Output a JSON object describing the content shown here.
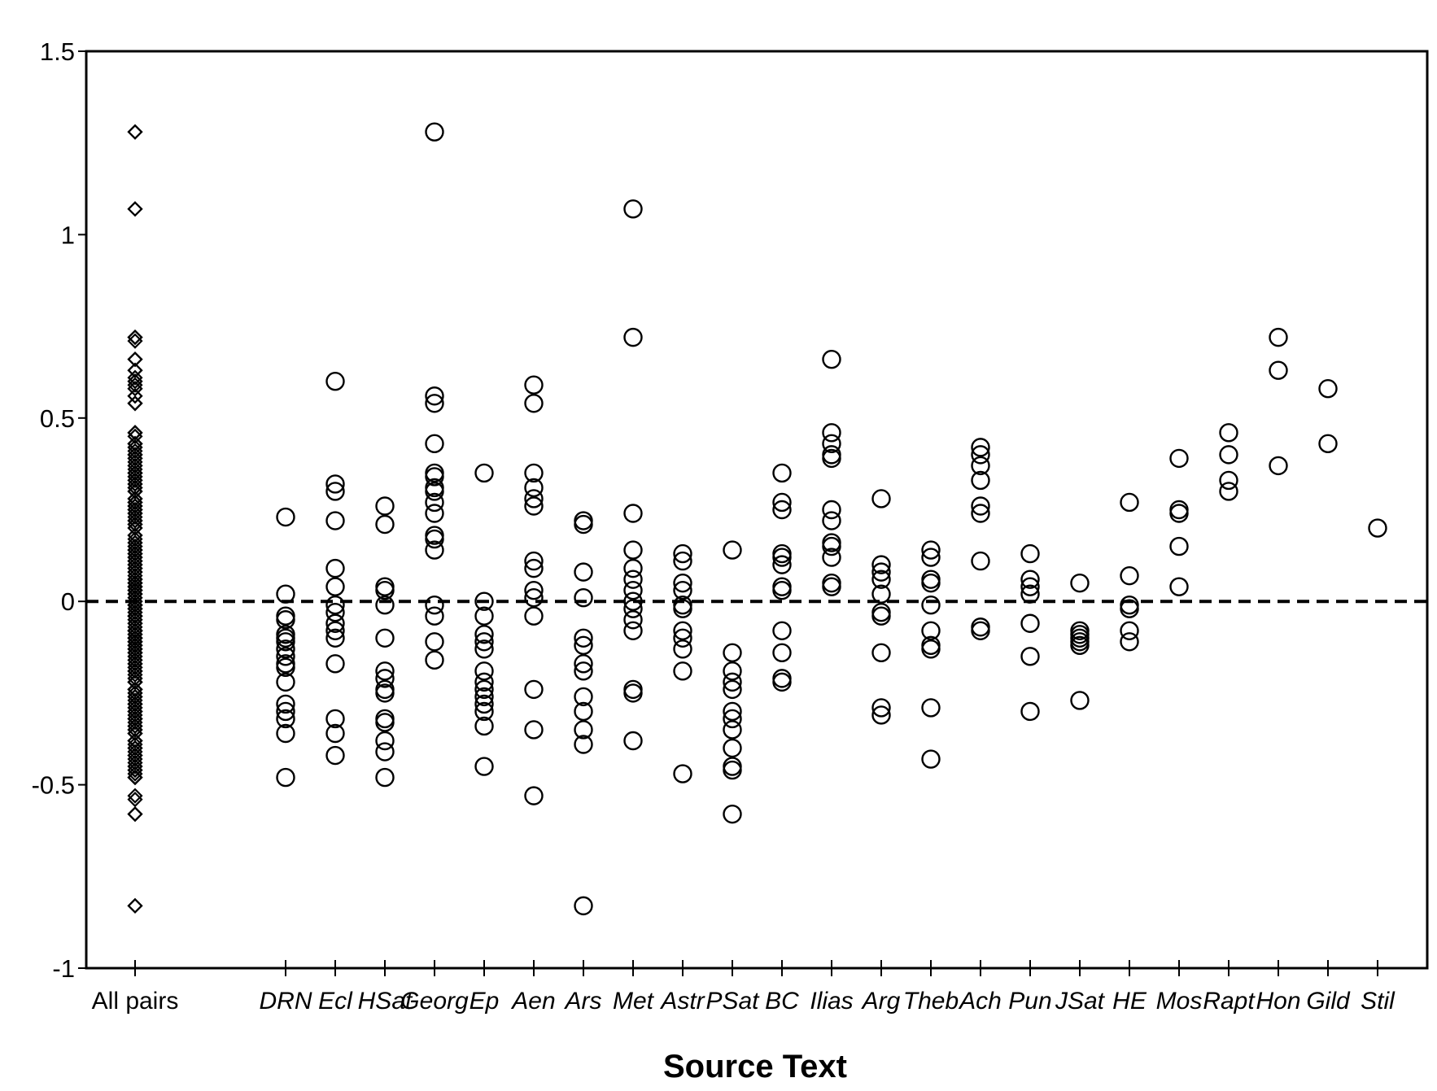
{
  "chart_data": {
    "type": "scatter",
    "title": "",
    "xlabel": "Source Text",
    "ylabel": "",
    "ylim": [
      -1,
      1.5
    ],
    "yticks": [
      "1.5",
      "1",
      "0.5",
      "0",
      "-0.5",
      "-1"
    ],
    "reference_line": {
      "y": 0,
      "style": "dashed"
    },
    "grid": false,
    "legend": "none",
    "categories": [
      "All pairs",
      "DRN",
      "Ecl",
      "HSat",
      "Georg",
      "Ep",
      "Aen",
      "Ars",
      "Met",
      "Astr",
      "PSat",
      "BC",
      "Ilias",
      "Arg",
      "Theb",
      "Ach",
      "Pun",
      "JSat",
      "HE",
      "Mos",
      "Rapt",
      "Hon",
      "Gild",
      "Stil"
    ],
    "italic_categories": [
      "DRN",
      "Ecl",
      "HSat",
      "Georg",
      "Ep",
      "Aen",
      "Ars",
      "Met",
      "Astr",
      "PSat",
      "BC",
      "Ilias",
      "Arg",
      "Theb",
      "Ach",
      "Pun",
      "JSat",
      "HE",
      "Mos",
      "Rapt",
      "Hon",
      "Gild",
      "Stil"
    ],
    "all_pairs_marker": "diamond",
    "group_marker": "circle",
    "groups": {
      "DRN": [
        0.23,
        0.02,
        -0.04,
        -0.05,
        -0.09,
        -0.1,
        -0.11,
        -0.13,
        -0.15,
        -0.17,
        -0.18,
        -0.22,
        -0.28,
        -0.3,
        -0.32,
        -0.36,
        -0.48
      ],
      "Ecl": [
        0.6,
        0.32,
        0.3,
        0.22,
        0.09,
        0.04,
        -0.01,
        -0.03,
        -0.06,
        -0.08,
        -0.1,
        -0.17,
        -0.32,
        -0.36,
        -0.42
      ],
      "HSat": [
        0.26,
        0.21,
        0.04,
        0.03,
        -0.01,
        -0.1,
        -0.19,
        -0.21,
        -0.24,
        -0.25,
        -0.32,
        -0.33,
        -0.38,
        -0.41,
        -0.48
      ],
      "Georg": [
        1.28,
        0.56,
        0.54,
        0.43,
        0.35,
        0.34,
        0.31,
        0.3,
        0.27,
        0.24,
        0.18,
        0.17,
        0.14,
        -0.01,
        -0.04,
        -0.11,
        -0.16
      ],
      "Ep": [
        0.35,
        0.0,
        -0.04,
        -0.09,
        -0.11,
        -0.13,
        -0.19,
        -0.22,
        -0.24,
        -0.26,
        -0.28,
        -0.3,
        -0.34,
        -0.45
      ],
      "Aen": [
        0.59,
        0.54,
        0.35,
        0.31,
        0.28,
        0.26,
        0.11,
        0.09,
        0.03,
        0.01,
        -0.04,
        -0.24,
        -0.35,
        -0.53
      ],
      "Ars": [
        0.22,
        0.21,
        0.08,
        0.01,
        -0.1,
        -0.12,
        -0.17,
        -0.19,
        -0.26,
        -0.3,
        -0.35,
        -0.39,
        -0.83
      ],
      "Met": [
        1.07,
        0.72,
        0.24,
        0.14,
        0.09,
        0.06,
        0.03,
        0.0,
        -0.02,
        -0.05,
        -0.08,
        -0.24,
        -0.25,
        -0.38
      ],
      "Astr": [
        0.13,
        0.11,
        0.05,
        0.03,
        -0.01,
        -0.02,
        -0.08,
        -0.1,
        -0.13,
        -0.19,
        -0.47
      ],
      "PSat": [
        0.14,
        -0.14,
        -0.19,
        -0.22,
        -0.24,
        -0.3,
        -0.32,
        -0.35,
        -0.4,
        -0.45,
        -0.46,
        -0.58
      ],
      "BC": [
        0.35,
        0.27,
        0.25,
        0.13,
        0.12,
        0.1,
        0.04,
        0.03,
        -0.08,
        -0.14,
        -0.21,
        -0.22
      ],
      "Ilias": [
        0.66,
        0.46,
        0.43,
        0.4,
        0.39,
        0.25,
        0.22,
        0.16,
        0.15,
        0.12,
        0.05,
        0.04
      ],
      "Arg": [
        0.28,
        0.1,
        0.08,
        0.06,
        0.02,
        -0.03,
        -0.04,
        -0.14,
        -0.29,
        -0.31
      ],
      "Theb": [
        0.14,
        0.12,
        0.06,
        0.05,
        -0.01,
        -0.08,
        -0.12,
        -0.13,
        -0.29,
        -0.43
      ],
      "Ach": [
        0.42,
        0.4,
        0.37,
        0.33,
        0.26,
        0.24,
        0.11,
        -0.07,
        -0.08
      ],
      "Pun": [
        0.13,
        0.06,
        0.04,
        0.02,
        -0.06,
        -0.15,
        -0.3
      ],
      "JSat": [
        0.05,
        -0.08,
        -0.09,
        -0.1,
        -0.11,
        -0.12,
        -0.27
      ],
      "HE": [
        0.27,
        0.07,
        -0.01,
        -0.02,
        -0.08,
        -0.11
      ],
      "Mos": [
        0.39,
        0.25,
        0.24,
        0.15,
        0.04
      ],
      "Rapt": [
        0.46,
        0.4,
        0.33,
        0.3
      ],
      "Hon": [
        0.72,
        0.63,
        0.37
      ],
      "Gild": [
        0.58,
        0.43
      ],
      "Stil": [
        0.2
      ]
    },
    "all_pairs_extra": [
      1.28,
      1.07,
      0.72,
      0.71,
      0.66,
      0.63,
      0.61,
      0.6,
      0.58,
      0.56,
      0.54,
      0.46,
      0.45,
      0.43,
      0.42,
      0.41,
      0.4,
      0.38,
      0.36,
      0.34,
      0.32,
      0.3,
      0.28,
      0.26,
      0.24,
      0.22,
      0.2,
      0.18,
      0.16,
      0.14,
      0.12,
      0.1,
      0.08,
      0.06,
      0.04,
      0.02,
      0.0,
      -0.02,
      -0.04,
      -0.06,
      -0.08,
      -0.1,
      -0.12,
      -0.14,
      -0.16,
      -0.18,
      -0.2,
      -0.22,
      -0.24,
      -0.26,
      -0.28,
      -0.3,
      -0.32,
      -0.34,
      -0.36,
      -0.38,
      -0.4,
      -0.42,
      -0.44,
      -0.46,
      -0.48,
      -0.54,
      -0.58,
      -0.83
    ]
  }
}
